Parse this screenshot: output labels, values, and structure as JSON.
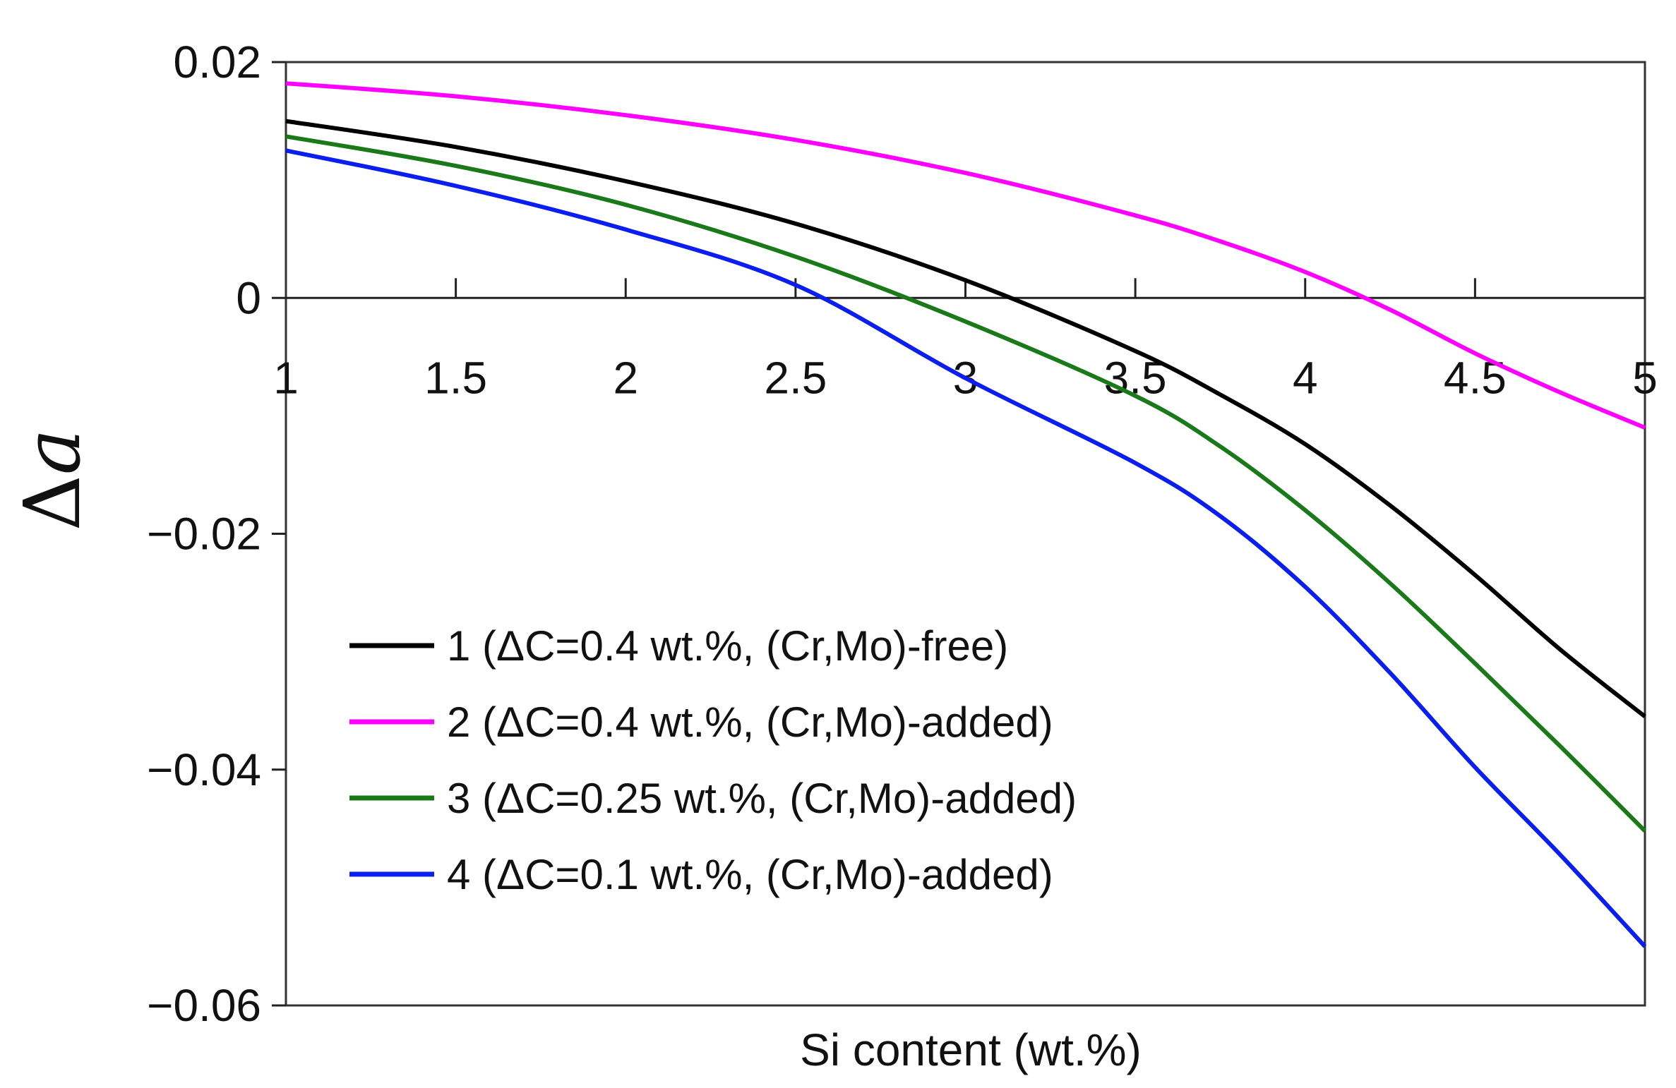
{
  "chart_data": {
    "type": "line",
    "title": "",
    "xlabel": "Si content (wt.%)",
    "ylabel_delta": "Δ",
    "ylabel_var": "a",
    "xlim": [
      1,
      5
    ],
    "ylim": [
      -0.06,
      0.02
    ],
    "xticks": [
      1,
      1.5,
      2,
      2.5,
      3,
      3.5,
      4,
      4.5,
      5
    ],
    "xtick_labels": [
      "1",
      "1.5",
      "2",
      "2.5",
      "3",
      "3.5",
      "4",
      "4.5",
      "5"
    ],
    "yticks": [
      0.02,
      0,
      -0.02,
      -0.04,
      -0.06
    ],
    "ytick_labels": [
      "0.02",
      "0",
      "−0.02",
      "−0.04",
      "−0.06"
    ],
    "zero_line": true,
    "grid": false,
    "legend_position": "lower-left",
    "x": [
      1.0,
      1.5,
      2.0,
      2.5,
      3.0,
      3.5,
      3.75,
      4.0,
      4.25,
      4.5,
      4.75,
      5.0
    ],
    "series": [
      {
        "name": "1 (ΔC=0.4 wt.%, (Cr,Mo)-free)",
        "color": "#000000",
        "values": [
          0.015,
          0.0128,
          0.0099,
          0.0063,
          0.0015,
          -0.0045,
          -0.0082,
          -0.0124,
          -0.0176,
          -0.0235,
          -0.0298,
          -0.0355
        ]
      },
      {
        "name": "2 (ΔC=0.4 wt.%, (Cr,Mo)-added)",
        "color": "#ff00ff",
        "values": [
          0.0182,
          0.0171,
          0.0155,
          0.0134,
          0.0106,
          0.007,
          0.0048,
          0.0022,
          -0.001,
          -0.0047,
          -0.008,
          -0.011
        ]
      },
      {
        "name": "3 (ΔC=0.25 wt.%, (Cr,Mo)-added)",
        "color": "#1a7a1a",
        "values": [
          0.0137,
          0.0112,
          0.0079,
          0.0035,
          -0.002,
          -0.0083,
          -0.0126,
          -0.018,
          -0.0242,
          -0.031,
          -0.038,
          -0.0452
        ]
      },
      {
        "name": "4 (ΔC=0.1 wt.%, (Cr,Mo)-added)",
        "color": "#0a1ef0",
        "values": [
          0.0125,
          0.0095,
          0.0058,
          0.0011,
          -0.0068,
          -0.014,
          -0.0185,
          -0.0245,
          -0.0318,
          -0.0398,
          -0.0472,
          -0.055
        ]
      }
    ]
  }
}
